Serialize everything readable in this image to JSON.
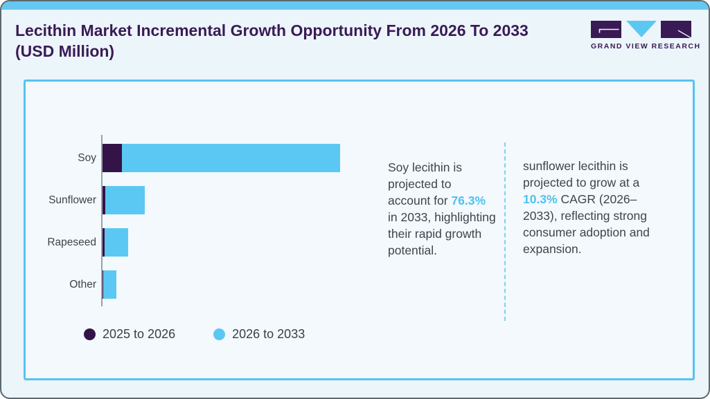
{
  "page": {
    "title": "Lecithin Market Incremental Growth Opportunity From 2026 To 2033 (USD Million)"
  },
  "logo": {
    "text": "GRAND VIEW RESEARCH"
  },
  "chart_data": {
    "type": "bar",
    "orientation": "horizontal",
    "stacked": true,
    "title": "Lecithin Market Incremental Growth Opportunity From 2026 To 2033 (USD Million)",
    "xlabel": "",
    "ylabel": "",
    "units": "USD Million",
    "value_axis_labeled": false,
    "values_note": "no numeric axis shown; values are relative estimates scaled so the largest total bar (Soy) = 100",
    "categories": [
      "Soy",
      "Sunflower",
      "Rapeseed",
      "Other"
    ],
    "series": [
      {
        "name": "2025 to 2026",
        "color": "#341349",
        "values": [
          8.2,
          1.2,
          0.9,
          0.3
        ]
      },
      {
        "name": "2026 to 2033",
        "color": "#5bc8f4",
        "values": [
          91.8,
          16.6,
          9.9,
          5.5
        ]
      }
    ],
    "xlim": [
      0,
      100
    ],
    "grid": false,
    "legend_position": "bottom-left"
  },
  "annotations": {
    "soy": {
      "pre": "Soy lecithin is projected to account for ",
      "highlight": "76.3%",
      "post": " in 2033, highlighting their rapid growth potential."
    },
    "sunflower": {
      "pre": "sunflower lecithin is projected to grow at a ",
      "highlight": "10.3%",
      "post": " CAGR (2026–2033), reflecting strong consumer adoption and expansion."
    }
  },
  "colors": {
    "top_bar": "#66c8f0",
    "panel_border": "#55c3f0",
    "bar_purple": "#341349",
    "bar_blue": "#5bc8f4",
    "title_purple": "#3a1a55",
    "highlight_blue": "#4fc1ef",
    "body_text": "#3f444e",
    "axis_gray": "#9aa0a6"
  }
}
